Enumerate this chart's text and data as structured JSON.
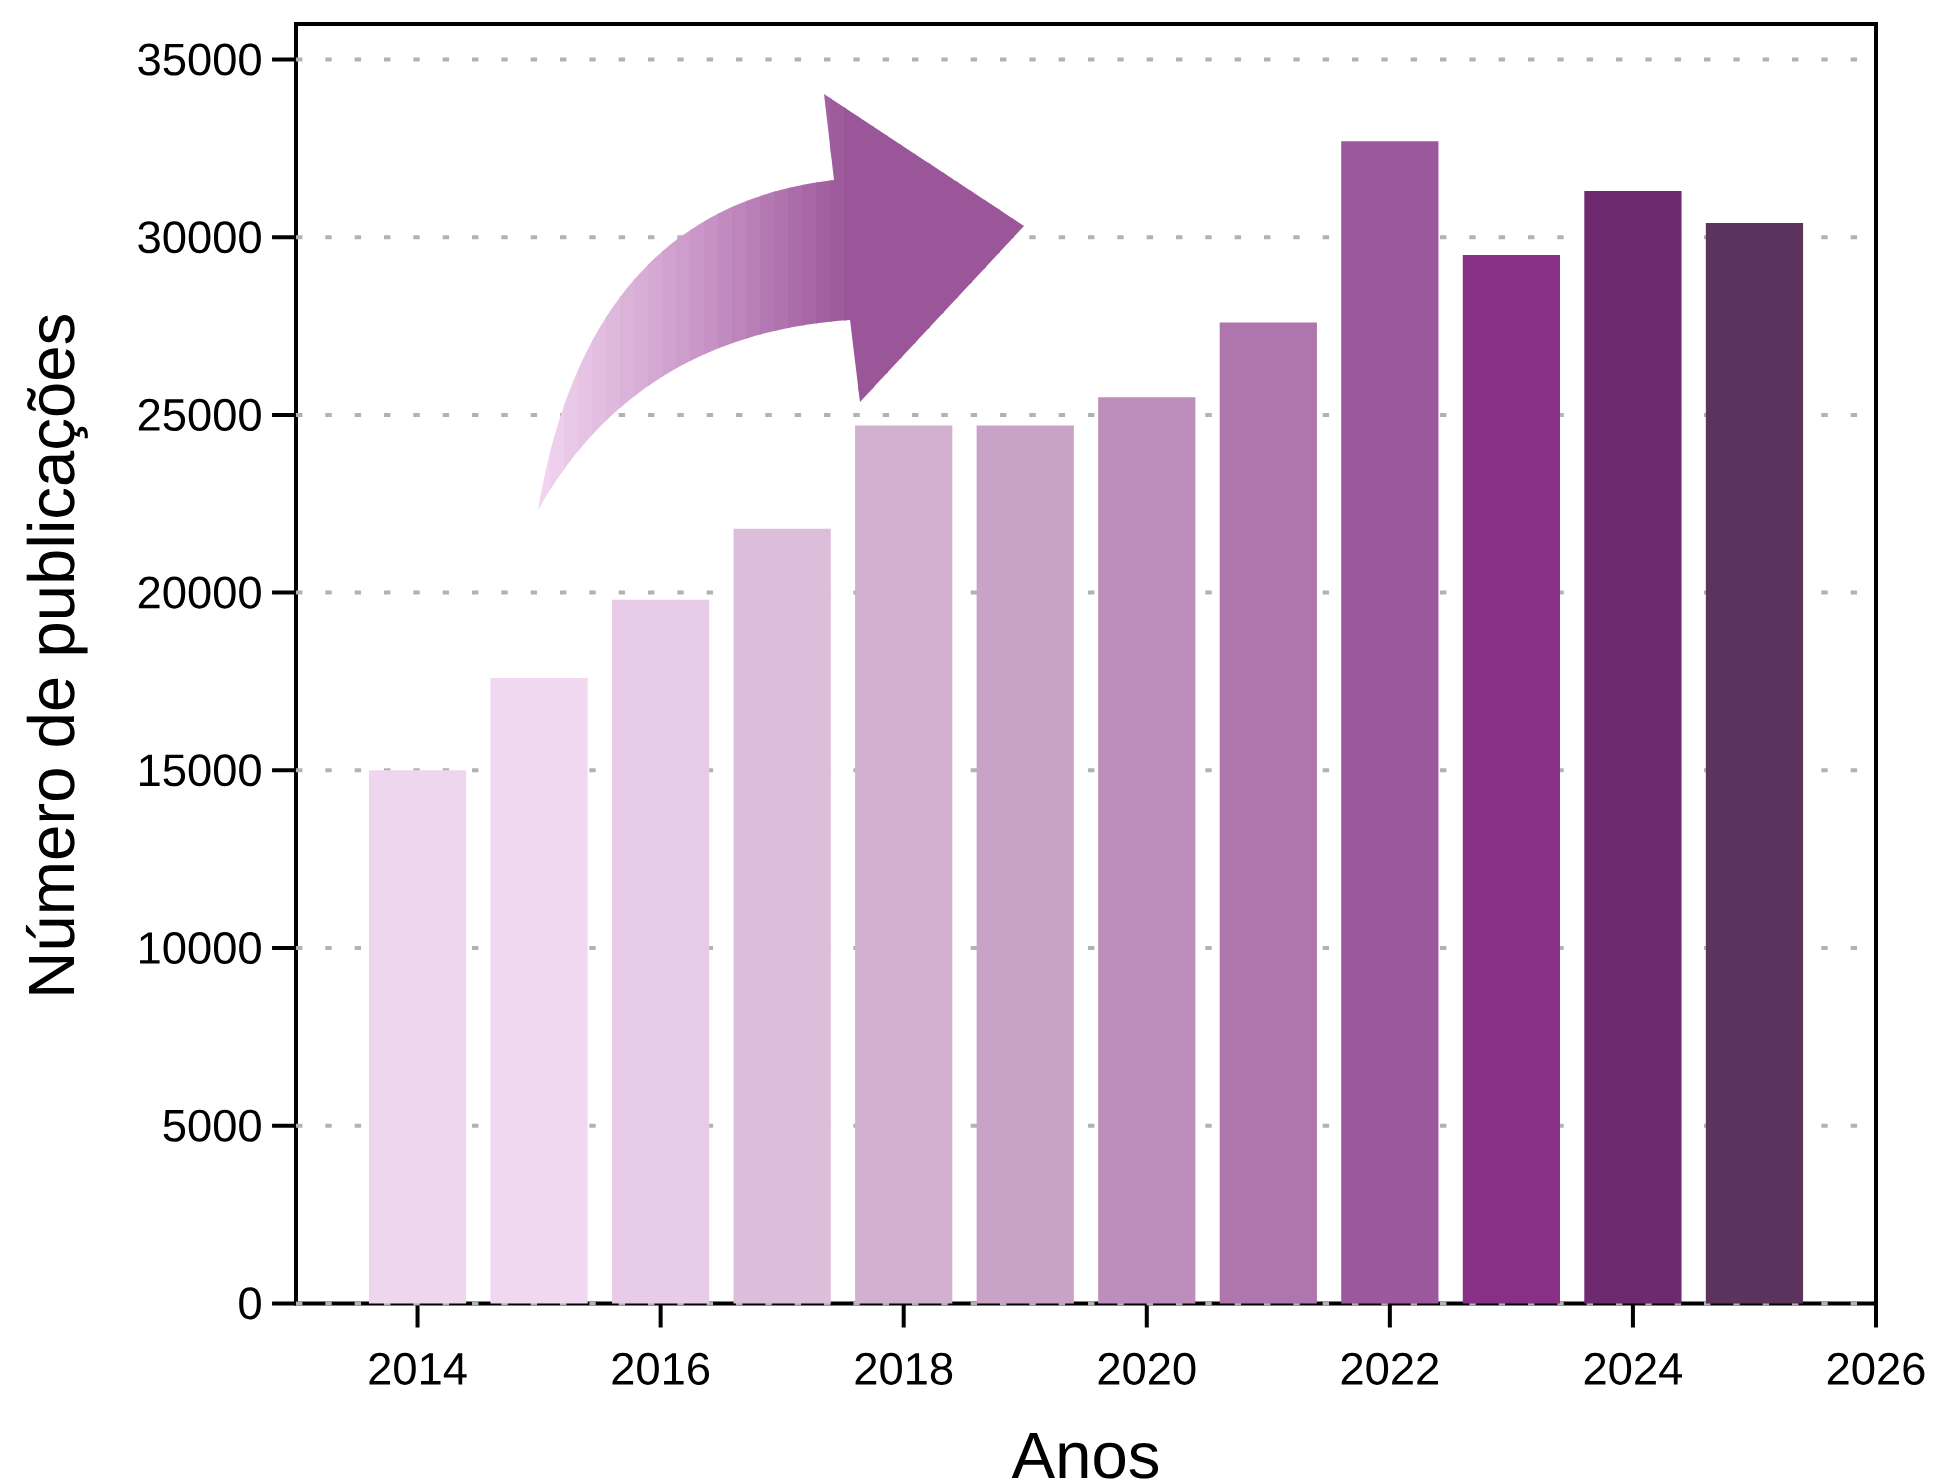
{
  "chart_data": {
    "type": "bar",
    "xlabel": "Anos",
    "ylabel": "Número de publicações",
    "x": [
      2014,
      2015,
      2016,
      2017,
      2018,
      2019,
      2020,
      2021,
      2022,
      2023,
      2024,
      2025
    ],
    "values": [
      15000,
      17600,
      19800,
      21800,
      24700,
      24700,
      25500,
      27600,
      32700,
      29500,
      31300,
      30400
    ],
    "colors": [
      "#eed7ee",
      "#f0d8f1",
      "#e8cbe6",
      "#dcbdda",
      "#d1b1cf",
      "#c8a3c7",
      "#bd8dbb",
      "#ae76ac",
      "#9c589c",
      "#873086",
      "#6e2a6e",
      "#5c335c"
    ],
    "xlim": [
      2013,
      2026
    ],
    "ylim": [
      0,
      36000
    ],
    "xticks": [
      2014,
      2016,
      2018,
      2020,
      2022,
      2024,
      2026
    ],
    "yticks": [
      0,
      5000,
      10000,
      15000,
      20000,
      25000,
      30000,
      35000
    ],
    "grid": "y"
  }
}
